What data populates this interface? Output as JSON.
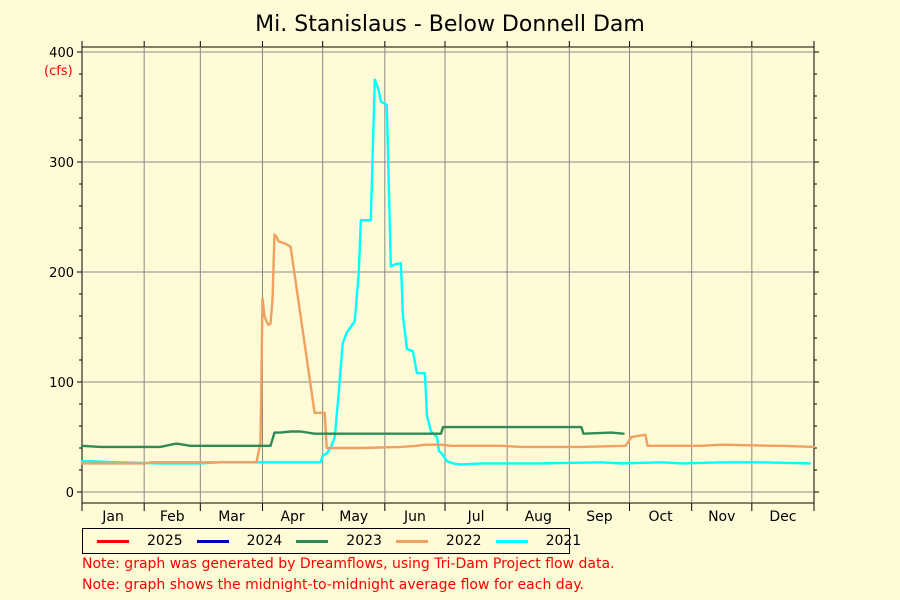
{
  "chart_data": {
    "type": "line",
    "title": "Mi. Stanislaus - Below Donnell Dam",
    "ylabel": "(cfs)",
    "ylim": [
      0,
      400
    ],
    "yticks": [
      0,
      100,
      200,
      300,
      400
    ],
    "x_categories": [
      "Jan",
      "Feb",
      "Mar",
      "Apr",
      "May",
      "Jun",
      "Jul",
      "Aug",
      "Sep",
      "Oct",
      "Nov",
      "Dec"
    ],
    "x_unit": "day of year",
    "xlim": [
      1,
      366
    ],
    "grid": true,
    "legend_position": "bottom",
    "series": [
      {
        "name": "2025",
        "color": "#ff0000",
        "points": []
      },
      {
        "name": "2024",
        "color": "#0000c0",
        "points": []
      },
      {
        "name": "2023",
        "color": "#2e8b57",
        "points": [
          [
            1,
            42
          ],
          [
            10,
            41
          ],
          [
            14,
            41
          ],
          [
            40,
            41
          ],
          [
            48,
            44
          ],
          [
            55,
            42
          ],
          [
            60,
            42
          ],
          [
            90,
            42
          ],
          [
            95,
            42
          ],
          [
            97,
            54
          ],
          [
            100,
            54
          ],
          [
            105,
            55
          ],
          [
            110,
            55
          ],
          [
            117,
            53
          ],
          [
            146,
            53
          ],
          [
            150,
            53
          ],
          [
            150,
            53
          ],
          [
            180,
            53
          ],
          [
            181,
            59
          ],
          [
            250,
            59
          ],
          [
            251,
            53
          ],
          [
            265,
            54
          ],
          [
            271,
            53
          ]
        ]
      },
      {
        "name": "2022",
        "color": "#f0a060",
        "points": [
          [
            1,
            26
          ],
          [
            20,
            26
          ],
          [
            32,
            26
          ],
          [
            36,
            27
          ],
          [
            40,
            27
          ],
          [
            60,
            27
          ],
          [
            88,
            27
          ],
          [
            90,
            45
          ],
          [
            91,
            176
          ],
          [
            92,
            160
          ],
          [
            93,
            155
          ],
          [
            94,
            152
          ],
          [
            95,
            153
          ],
          [
            96,
            175
          ],
          [
            97,
            234
          ],
          [
            98,
            232
          ],
          [
            99,
            228
          ],
          [
            102,
            226
          ],
          [
            105,
            223
          ],
          [
            117,
            72
          ],
          [
            122,
            72
          ],
          [
            123,
            40
          ],
          [
            126,
            40
          ],
          [
            140,
            40
          ],
          [
            160,
            41
          ],
          [
            168,
            42
          ],
          [
            172,
            43
          ],
          [
            180,
            43
          ],
          [
            185,
            42
          ],
          [
            210,
            42
          ],
          [
            220,
            41
          ],
          [
            250,
            41
          ],
          [
            272,
            42
          ],
          [
            275,
            50
          ],
          [
            282,
            52
          ],
          [
            283,
            42
          ],
          [
            310,
            42
          ],
          [
            320,
            43
          ],
          [
            345,
            42
          ],
          [
            350,
            42
          ],
          [
            366,
            41
          ]
        ]
      },
      {
        "name": "2021",
        "color": "#00ffff",
        "points": [
          [
            1,
            28
          ],
          [
            4,
            28
          ],
          [
            20,
            27
          ],
          [
            40,
            26
          ],
          [
            60,
            26
          ],
          [
            70,
            27
          ],
          [
            90,
            27
          ],
          [
            110,
            27
          ],
          [
            120,
            27
          ],
          [
            121,
            33
          ],
          [
            123,
            35
          ],
          [
            125,
            40
          ],
          [
            127,
            50
          ],
          [
            129,
            90
          ],
          [
            131,
            135
          ],
          [
            133,
            145
          ],
          [
            135,
            150
          ],
          [
            137,
            155
          ],
          [
            139,
            200
          ],
          [
            140,
            247
          ],
          [
            142,
            247
          ],
          [
            145,
            247
          ],
          [
            147,
            375
          ],
          [
            148,
            370
          ],
          [
            149,
            365
          ],
          [
            150,
            355
          ],
          [
            152,
            353
          ],
          [
            153,
            352
          ],
          [
            155,
            205
          ],
          [
            157,
            207
          ],
          [
            160,
            208
          ],
          [
            161,
            160
          ],
          [
            163,
            130
          ],
          [
            166,
            128
          ],
          [
            168,
            108
          ],
          [
            172,
            108
          ],
          [
            173,
            70
          ],
          [
            175,
            55
          ],
          [
            178,
            50
          ],
          [
            179,
            37
          ],
          [
            180,
            36
          ],
          [
            183,
            28
          ],
          [
            186,
            26
          ],
          [
            190,
            25
          ],
          [
            200,
            26
          ],
          [
            210,
            26
          ],
          [
            230,
            26
          ],
          [
            260,
            27
          ],
          [
            270,
            26
          ],
          [
            290,
            27
          ],
          [
            300,
            26
          ],
          [
            320,
            27
          ],
          [
            340,
            27
          ],
          [
            364,
            26
          ]
        ]
      }
    ]
  },
  "notes": [
    "Note: graph was generated by Dreamflows, using Tri-Dam Project flow data.",
    "Note: graph shows the midnight-to-midnight average flow for each day."
  ]
}
